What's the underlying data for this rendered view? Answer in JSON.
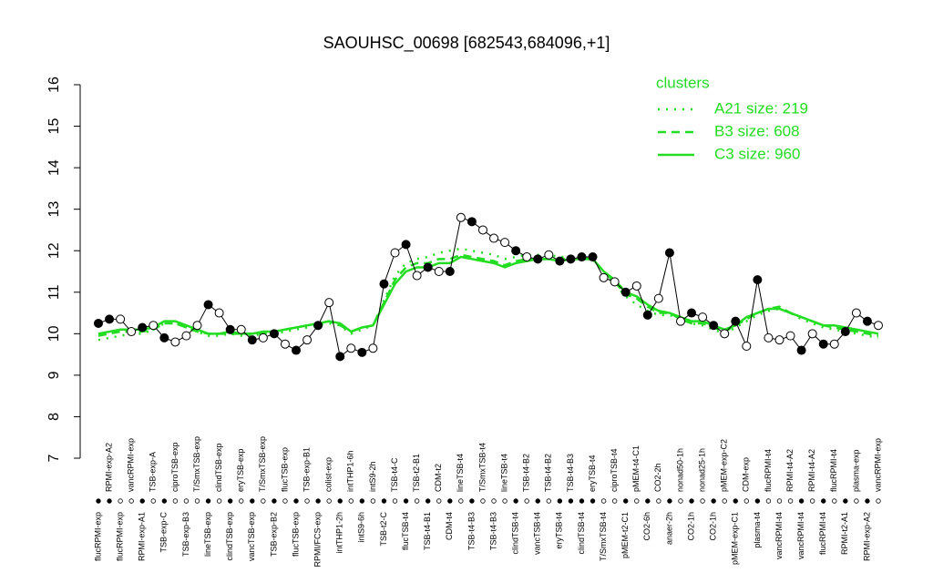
{
  "chart_data": {
    "type": "line",
    "title": "SAOUHSC_00698 [682543,684096,+1]",
    "categories": [
      "flucRPMI-exp",
      "RPMI-exp-A2",
      "flucRPMI-exp",
      "vancRPMI-exp",
      "RPMI-exp-A1",
      "TSB-exp-A",
      "TSB-exp-C",
      "ciproTSB-exp",
      "TSB-exp-B3",
      "T/SmxTSB-exp",
      "lineTSB-exp",
      "clindTSB-exp",
      "clindTSB-exp",
      "eryTSB-exp",
      "vancTSB-exp",
      "T/SmxTSB-exp",
      "TSB-exp-B2",
      "flucTSB-exp",
      "flucTSB-exp",
      "TSB-exp-B1",
      "RPMI/FCS-exp",
      "colist-exp",
      "intTHP1-2h",
      "intTHP1-6h",
      "intS9-6h",
      "intS9-2h",
      "TSB-t2-C",
      "TSB-t4-C",
      "flucTSB-t4",
      "TSB-t2-B1",
      "TSB-t4-B1",
      "CDM-t2",
      "CDM-t4",
      "lineTSB-t4",
      "TSB-t4-B3",
      "T/SmxTSB-t4",
      "TSB-t4-B3",
      "lineTSB-t4",
      "clindTSB-t4",
      "TSB-t4-B2",
      "vancTSB-t4",
      "TSB-t4-B2",
      "eryTSB-t4",
      "TSB-t4-B3",
      "clindTSB-t4",
      "eryTSB-t4",
      "T/SmxTSB-t4",
      "ciproTSB-t4",
      "pMEM-t2-C1",
      "pMEM-t4-C1",
      "CO2-6h",
      "CO2-2h",
      "anaer-2h",
      "nonad50-1h",
      "CO2-1h",
      "nonad25-1h",
      "CO2-1h",
      "pMEM-exp-C2",
      "pMEM-exp-C1",
      "CDM-exp",
      "plasma-t4",
      "flucRPMI-t4",
      "vancRPMI-t4",
      "RPMI-t4-A2",
      "vancRPMI-t4",
      "RPMI-t4-A2",
      "flucRPMI-t4",
      "flucRPMI-t4",
      "RPMI-t2-A1",
      "plasma-exp",
      "RPMI-exp-A2",
      "vancRPMI-exp"
    ],
    "values": [
      10.25,
      10.35,
      10.35,
      10.05,
      10.15,
      10.2,
      9.9,
      9.8,
      9.95,
      10.2,
      10.7,
      10.5,
      10.1,
      10.1,
      9.85,
      9.9,
      10.0,
      9.75,
      9.6,
      9.85,
      10.2,
      10.75,
      9.45,
      9.65,
      9.55,
      9.65,
      11.2,
      11.95,
      12.15,
      11.4,
      11.6,
      11.5,
      11.5,
      12.8,
      12.7,
      12.5,
      12.3,
      12.2,
      12.0,
      11.85,
      11.8,
      11.9,
      11.75,
      11.8,
      11.85,
      11.85,
      11.35,
      11.25,
      11.0,
      11.15,
      10.45,
      10.85,
      11.95,
      10.3,
      10.5,
      10.4,
      10.2,
      10.0,
      10.3,
      9.7,
      11.3,
      9.9,
      9.85,
      9.95,
      9.6,
      10.0,
      9.75,
      9.75,
      10.05,
      10.5,
      10.3,
      10.2
    ],
    "color": "#000000",
    "marker_fills": [
      "#000000",
      "#000000",
      "#ffffff",
      "#ffffff",
      "#000000",
      "#ffffff",
      "#000000",
      "#ffffff",
      "#ffffff",
      "#ffffff",
      "#000000",
      "#ffffff",
      "#000000",
      "#ffffff",
      "#000000",
      "#ffffff",
      "#000000",
      "#ffffff",
      "#000000",
      "#ffffff",
      "#000000",
      "#ffffff",
      "#000000",
      "#ffffff",
      "#000000",
      "#ffffff",
      "#000000",
      "#ffffff",
      "#000000",
      "#ffffff",
      "#000000",
      "#ffffff",
      "#000000",
      "#ffffff",
      "#000000",
      "#ffffff",
      "#ffffff",
      "#ffffff",
      "#000000",
      "#ffffff",
      "#000000",
      "#ffffff",
      "#000000",
      "#000000",
      "#000000",
      "#000000",
      "#ffffff",
      "#ffffff",
      "#000000",
      "#ffffff",
      "#000000",
      "#ffffff",
      "#000000",
      "#ffffff",
      "#000000",
      "#ffffff",
      "#000000",
      "#ffffff",
      "#000000",
      "#ffffff",
      "#000000",
      "#ffffff",
      "#ffffff",
      "#ffffff",
      "#000000",
      "#ffffff",
      "#000000",
      "#ffffff",
      "#000000",
      "#ffffff",
      "#000000",
      "#ffffff"
    ],
    "legend_title": "clusters",
    "series": [
      {
        "name": "A21 size: 219",
        "color": "#22dd22",
        "linestyle": "dotted",
        "values": [
          9.85,
          9.9,
          9.95,
          10.0,
          10.0,
          10.1,
          10.25,
          10.25,
          10.15,
          10.05,
          9.95,
          9.95,
          10.0,
          9.95,
          9.95,
          10.0,
          10.0,
          10.05,
          10.1,
          10.15,
          10.2,
          10.25,
          10.2,
          10.0,
          10.1,
          10.2,
          10.8,
          11.4,
          11.7,
          11.8,
          11.85,
          11.95,
          12.0,
          12.05,
          12.0,
          11.95,
          11.9,
          11.8,
          11.85,
          11.9,
          11.9,
          11.9,
          11.85,
          11.85,
          11.85,
          11.8,
          11.45,
          11.2,
          10.9,
          10.7,
          10.55,
          10.45,
          10.45,
          10.35,
          10.25,
          10.2,
          10.1,
          10.0,
          10.15,
          10.3,
          10.45,
          10.55,
          10.6,
          10.5,
          10.35,
          10.25,
          10.15,
          10.1,
          10.05,
          10.0,
          9.95,
          9.9
        ]
      },
      {
        "name": "B3 size: 608",
        "color": "#22dd22",
        "linestyle": "dashed",
        "values": [
          9.95,
          10.0,
          10.05,
          10.05,
          10.05,
          10.1,
          10.25,
          10.25,
          10.15,
          10.05,
          10.0,
          10.0,
          10.0,
          10.0,
          10.0,
          10.0,
          10.05,
          10.1,
          10.15,
          10.2,
          10.25,
          10.3,
          10.2,
          10.05,
          10.15,
          10.2,
          10.75,
          11.3,
          11.6,
          11.7,
          11.7,
          11.8,
          11.8,
          11.9,
          11.85,
          11.8,
          11.75,
          11.65,
          11.75,
          11.8,
          11.8,
          11.8,
          11.8,
          11.8,
          11.8,
          11.8,
          11.5,
          11.25,
          10.95,
          10.85,
          10.65,
          10.5,
          10.5,
          10.35,
          10.25,
          10.25,
          10.15,
          10.05,
          10.2,
          10.35,
          10.5,
          10.6,
          10.65,
          10.5,
          10.4,
          10.3,
          10.2,
          10.15,
          10.1,
          10.05,
          10.0,
          9.95
        ]
      },
      {
        "name": "C3 size: 960",
        "color": "#22dd22",
        "linestyle": "solid",
        "values": [
          10.0,
          10.05,
          10.1,
          10.1,
          10.1,
          10.15,
          10.3,
          10.3,
          10.2,
          10.1,
          10.0,
          10.0,
          10.05,
          10.0,
          10.0,
          10.05,
          10.05,
          10.1,
          10.15,
          10.2,
          10.25,
          10.3,
          10.25,
          10.05,
          10.15,
          10.2,
          10.7,
          11.2,
          11.5,
          11.6,
          11.6,
          11.7,
          11.7,
          11.85,
          11.8,
          11.75,
          11.7,
          11.6,
          11.7,
          11.75,
          11.8,
          11.8,
          11.75,
          11.8,
          11.8,
          11.8,
          11.5,
          11.3,
          11.0,
          10.9,
          10.7,
          10.55,
          10.5,
          10.4,
          10.3,
          10.3,
          10.2,
          10.1,
          10.2,
          10.4,
          10.5,
          10.6,
          10.6,
          10.5,
          10.4,
          10.3,
          10.2,
          10.2,
          10.15,
          10.1,
          10.05,
          10.0
        ]
      }
    ],
    "ylim": [
      7,
      16
    ],
    "yticks": [
      7,
      8,
      9,
      10,
      11,
      12,
      13,
      14,
      15,
      16
    ]
  }
}
